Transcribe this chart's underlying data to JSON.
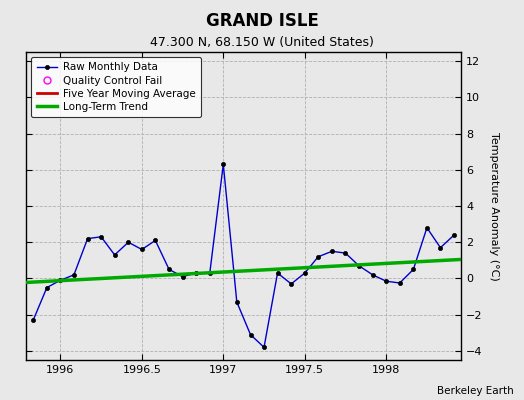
{
  "title": "GRAND ISLE",
  "subtitle": "47.300 N, 68.150 W (United States)",
  "ylabel": "Temperature Anomaly (°C)",
  "credit": "Berkeley Earth",
  "xlim": [
    1995.79,
    1998.46
  ],
  "ylim": [
    -4.5,
    12.5
  ],
  "yticks": [
    -4,
    -2,
    0,
    2,
    4,
    6,
    8,
    10,
    12
  ],
  "xticks": [
    1996,
    1996.5,
    1997,
    1997.5,
    1998
  ],
  "bg_color": "#e8e8e8",
  "plot_bg_color": "#e8e8e8",
  "raw_x": [
    1995.833,
    1995.917,
    1996.0,
    1996.083,
    1996.167,
    1996.25,
    1996.333,
    1996.417,
    1996.5,
    1996.583,
    1996.667,
    1996.75,
    1996.833,
    1996.917,
    1997.0,
    1997.083,
    1997.167,
    1997.25,
    1997.333,
    1997.417,
    1997.5,
    1997.583,
    1997.667,
    1997.75,
    1997.833,
    1997.917,
    1998.0,
    1998.083,
    1998.167,
    1998.25,
    1998.333,
    1998.417
  ],
  "raw_y": [
    -2.3,
    -0.5,
    -0.1,
    0.2,
    2.2,
    2.3,
    1.3,
    2.0,
    1.6,
    2.1,
    0.5,
    0.1,
    0.3,
    0.3,
    6.3,
    -1.3,
    -3.1,
    -3.8,
    0.3,
    -0.3,
    0.3,
    1.2,
    1.5,
    1.4,
    0.7,
    0.2,
    -0.15,
    -0.25,
    0.5,
    2.8,
    1.7,
    2.4
  ],
  "trend_x": [
    1995.79,
    1998.46
  ],
  "trend_y": [
    -0.22,
    1.05
  ],
  "raw_color": "#0000cc",
  "raw_marker_color": "#000000",
  "trend_color": "#00aa00",
  "mavg_color": "#cc0000",
  "qc_color": "#ff00ff",
  "title_fontsize": 12,
  "subtitle_fontsize": 9,
  "tick_fontsize": 8,
  "ylabel_fontsize": 8
}
